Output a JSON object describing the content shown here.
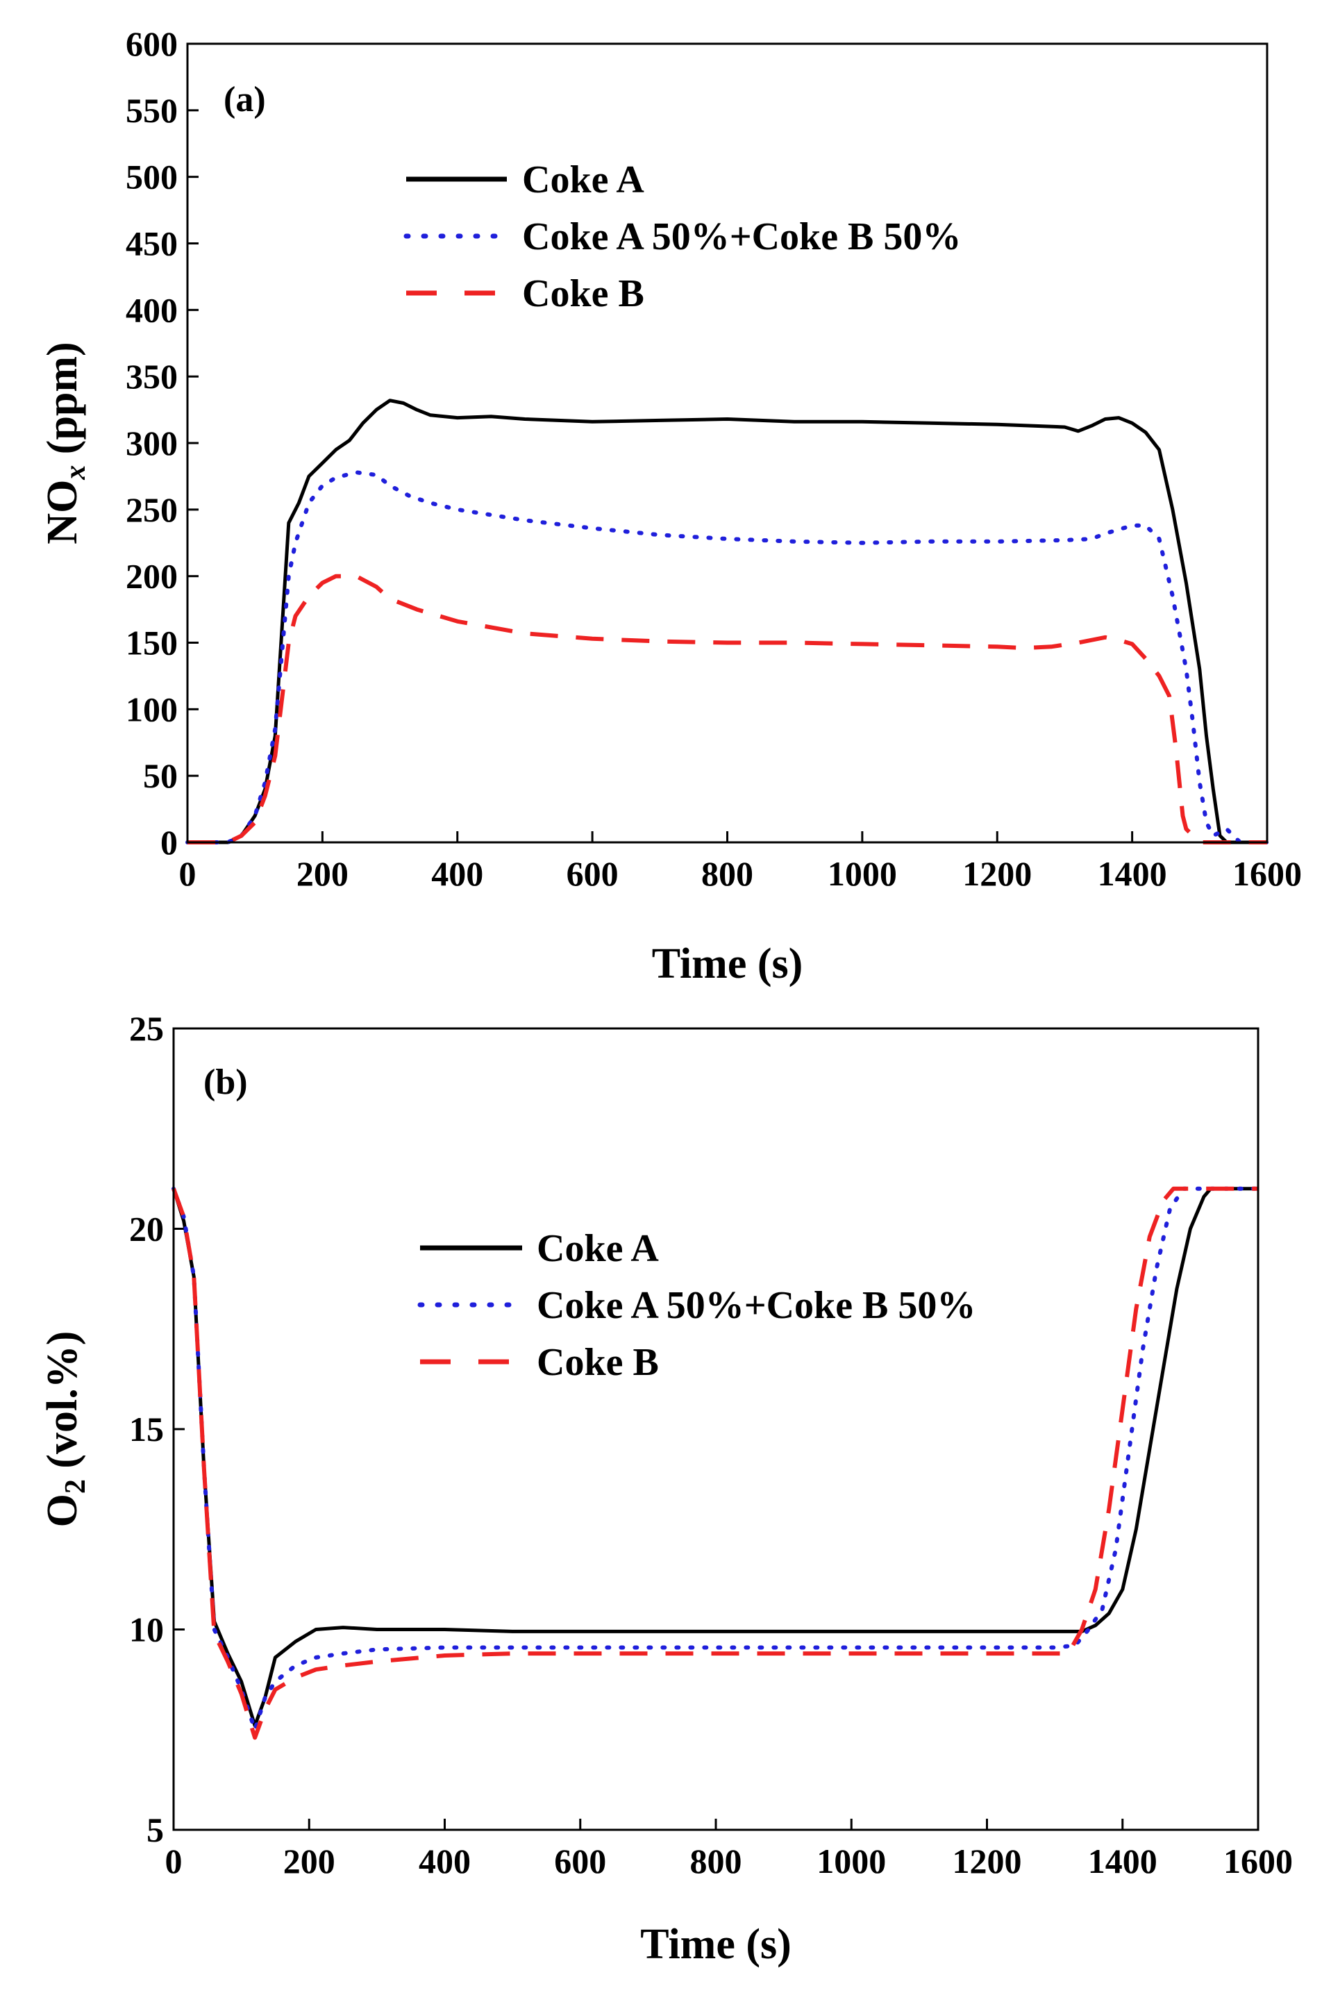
{
  "figure": {
    "panel_a_label": "(a)",
    "panel_b_label": "(b)"
  },
  "chart_data": [
    {
      "id": "a",
      "type": "line",
      "title": "",
      "panel_label": "(a)",
      "xlabel": "Time (s)",
      "ylabel_main": "NO",
      "ylabel_sub": "x",
      "ylabel_rest": " (ppm)",
      "xlim": [
        0,
        1600
      ],
      "ylim": [
        0,
        600
      ],
      "xticks": [
        0,
        200,
        400,
        600,
        800,
        1000,
        1200,
        1400,
        1600
      ],
      "yticks": [
        0,
        50,
        100,
        150,
        200,
        250,
        300,
        350,
        400,
        450,
        500,
        550,
        600
      ],
      "grid": false,
      "legend_position": "top-center",
      "series": [
        {
          "name": "Coke A",
          "color": "#000000",
          "style": "solid",
          "points": [
            [
              0,
              0
            ],
            [
              60,
              0
            ],
            [
              80,
              5
            ],
            [
              100,
              20
            ],
            [
              115,
              40
            ],
            [
              130,
              80
            ],
            [
              150,
              240
            ],
            [
              165,
              255
            ],
            [
              180,
              275
            ],
            [
              200,
              285
            ],
            [
              220,
              295
            ],
            [
              240,
              302
            ],
            [
              260,
              315
            ],
            [
              280,
              325
            ],
            [
              300,
              332
            ],
            [
              320,
              330
            ],
            [
              340,
              325
            ],
            [
              360,
              321
            ],
            [
              400,
              319
            ],
            [
              450,
              320
            ],
            [
              500,
              318
            ],
            [
              600,
              316
            ],
            [
              700,
              317
            ],
            [
              800,
              318
            ],
            [
              900,
              316
            ],
            [
              1000,
              316
            ],
            [
              1100,
              315
            ],
            [
              1200,
              314
            ],
            [
              1300,
              312
            ],
            [
              1320,
              309
            ],
            [
              1340,
              313
            ],
            [
              1360,
              318
            ],
            [
              1380,
              319
            ],
            [
              1400,
              315
            ],
            [
              1420,
              308
            ],
            [
              1440,
              295
            ],
            [
              1460,
              250
            ],
            [
              1480,
              195
            ],
            [
              1500,
              130
            ],
            [
              1510,
              80
            ],
            [
              1520,
              40
            ],
            [
              1530,
              5
            ],
            [
              1540,
              0
            ],
            [
              1600,
              0
            ]
          ]
        },
        {
          "name": "Coke A 50%+Coke B 50%",
          "color": "#1f1fdb",
          "style": "dotted",
          "points": [
            [
              0,
              0
            ],
            [
              60,
              0
            ],
            [
              80,
              5
            ],
            [
              100,
              20
            ],
            [
              115,
              45
            ],
            [
              130,
              85
            ],
            [
              150,
              200
            ],
            [
              160,
              225
            ],
            [
              180,
              255
            ],
            [
              200,
              268
            ],
            [
              220,
              274
            ],
            [
              250,
              278
            ],
            [
              280,
              276
            ],
            [
              300,
              268
            ],
            [
              330,
              260
            ],
            [
              360,
              255
            ],
            [
              400,
              250
            ],
            [
              500,
              242
            ],
            [
              600,
              236
            ],
            [
              700,
              231
            ],
            [
              800,
              228
            ],
            [
              900,
              226
            ],
            [
              1000,
              225
            ],
            [
              1100,
              226
            ],
            [
              1200,
              226
            ],
            [
              1300,
              227
            ],
            [
              1340,
              228
            ],
            [
              1360,
              232
            ],
            [
              1380,
              235
            ],
            [
              1400,
              238
            ],
            [
              1420,
              238
            ],
            [
              1440,
              228
            ],
            [
              1460,
              185
            ],
            [
              1480,
              130
            ],
            [
              1490,
              90
            ],
            [
              1500,
              45
            ],
            [
              1510,
              15
            ],
            [
              1520,
              5
            ],
            [
              1540,
              10
            ],
            [
              1560,
              0
            ],
            [
              1600,
              0
            ]
          ]
        },
        {
          "name": "Coke B",
          "color": "#ee2222",
          "style": "dashed",
          "points": [
            [
              0,
              0
            ],
            [
              60,
              0
            ],
            [
              80,
              5
            ],
            [
              100,
              15
            ],
            [
              115,
              35
            ],
            [
              130,
              65
            ],
            [
              150,
              150
            ],
            [
              160,
              170
            ],
            [
              180,
              185
            ],
            [
              200,
              195
            ],
            [
              220,
              200
            ],
            [
              250,
              200
            ],
            [
              280,
              192
            ],
            [
              300,
              183
            ],
            [
              340,
              175
            ],
            [
              400,
              166
            ],
            [
              500,
              157
            ],
            [
              600,
              153
            ],
            [
              700,
              151
            ],
            [
              800,
              150
            ],
            [
              900,
              150
            ],
            [
              1000,
              149
            ],
            [
              1100,
              148
            ],
            [
              1200,
              147
            ],
            [
              1240,
              146
            ],
            [
              1280,
              147
            ],
            [
              1320,
              150
            ],
            [
              1360,
              154
            ],
            [
              1380,
              152
            ],
            [
              1400,
              149
            ],
            [
              1420,
              138
            ],
            [
              1440,
              125
            ],
            [
              1455,
              110
            ],
            [
              1465,
              70
            ],
            [
              1475,
              20
            ],
            [
              1480,
              10
            ],
            [
              1490,
              5
            ],
            [
              1500,
              0
            ],
            [
              1600,
              0
            ]
          ]
        }
      ]
    },
    {
      "id": "b",
      "type": "line",
      "title": "",
      "panel_label": "(b)",
      "xlabel": "Time (s)",
      "ylabel_main": "O",
      "ylabel_sub": "2",
      "ylabel_rest": " (vol.%)",
      "xlim": [
        0,
        1600
      ],
      "ylim": [
        5,
        25
      ],
      "xticks": [
        0,
        200,
        400,
        600,
        800,
        1000,
        1200,
        1400,
        1600
      ],
      "yticks": [
        5,
        10,
        15,
        20,
        25
      ],
      "grid": false,
      "legend_position": "middle-left",
      "series": [
        {
          "name": "Coke A",
          "color": "#000000",
          "style": "solid",
          "points": [
            [
              0,
              21
            ],
            [
              15,
              20.2
            ],
            [
              30,
              18.8
            ],
            [
              45,
              14
            ],
            [
              60,
              10.2
            ],
            [
              80,
              9.4
            ],
            [
              100,
              8.7
            ],
            [
              120,
              7.6
            ],
            [
              135,
              8.3
            ],
            [
              150,
              9.3
            ],
            [
              180,
              9.7
            ],
            [
              210,
              10.0
            ],
            [
              250,
              10.05
            ],
            [
              300,
              10.0
            ],
            [
              400,
              10.0
            ],
            [
              500,
              9.95
            ],
            [
              600,
              9.95
            ],
            [
              700,
              9.95
            ],
            [
              800,
              9.95
            ],
            [
              900,
              9.95
            ],
            [
              1000,
              9.95
            ],
            [
              1100,
              9.95
            ],
            [
              1200,
              9.95
            ],
            [
              1300,
              9.95
            ],
            [
              1340,
              9.95
            ],
            [
              1360,
              10.1
            ],
            [
              1380,
              10.4
            ],
            [
              1400,
              11.0
            ],
            [
              1420,
              12.5
            ],
            [
              1440,
              14.5
            ],
            [
              1460,
              16.5
            ],
            [
              1480,
              18.5
            ],
            [
              1500,
              20.0
            ],
            [
              1520,
              20.8
            ],
            [
              1530,
              21.0
            ],
            [
              1600,
              21.0
            ]
          ]
        },
        {
          "name": "Coke A 50%+Coke B 50%",
          "color": "#1f1fdb",
          "style": "dotted",
          "points": [
            [
              0,
              21
            ],
            [
              15,
              20.3
            ],
            [
              30,
              18.8
            ],
            [
              45,
              14
            ],
            [
              60,
              10.0
            ],
            [
              80,
              9.3
            ],
            [
              100,
              8.5
            ],
            [
              120,
              7.5
            ],
            [
              135,
              8.3
            ],
            [
              150,
              8.7
            ],
            [
              180,
              9.1
            ],
            [
              210,
              9.3
            ],
            [
              250,
              9.4
            ],
            [
              300,
              9.5
            ],
            [
              400,
              9.55
            ],
            [
              500,
              9.55
            ],
            [
              600,
              9.55
            ],
            [
              700,
              9.55
            ],
            [
              800,
              9.55
            ],
            [
              900,
              9.55
            ],
            [
              1000,
              9.55
            ],
            [
              1100,
              9.55
            ],
            [
              1200,
              9.55
            ],
            [
              1300,
              9.55
            ],
            [
              1330,
              9.6
            ],
            [
              1350,
              10.0
            ],
            [
              1370,
              10.5
            ],
            [
              1390,
              12.0
            ],
            [
              1410,
              14.5
            ],
            [
              1430,
              17.0
            ],
            [
              1450,
              19.0
            ],
            [
              1470,
              20.5
            ],
            [
              1490,
              21.0
            ],
            [
              1600,
              21.0
            ]
          ]
        },
        {
          "name": "Coke B",
          "color": "#ee2222",
          "style": "dashed",
          "points": [
            [
              0,
              21
            ],
            [
              15,
              20.3
            ],
            [
              30,
              18.8
            ],
            [
              45,
              14
            ],
            [
              60,
              9.9
            ],
            [
              80,
              9.2
            ],
            [
              100,
              8.4
            ],
            [
              120,
              7.3
            ],
            [
              135,
              8.0
            ],
            [
              150,
              8.5
            ],
            [
              180,
              8.8
            ],
            [
              210,
              9.0
            ],
            [
              250,
              9.1
            ],
            [
              300,
              9.2
            ],
            [
              400,
              9.35
            ],
            [
              500,
              9.4
            ],
            [
              600,
              9.4
            ],
            [
              700,
              9.4
            ],
            [
              800,
              9.4
            ],
            [
              900,
              9.4
            ],
            [
              1000,
              9.4
            ],
            [
              1100,
              9.4
            ],
            [
              1200,
              9.4
            ],
            [
              1300,
              9.4
            ],
            [
              1320,
              9.4
            ],
            [
              1340,
              10.0
            ],
            [
              1360,
              11.0
            ],
            [
              1380,
              13.0
            ],
            [
              1400,
              15.5
            ],
            [
              1420,
              18.0
            ],
            [
              1440,
              19.8
            ],
            [
              1460,
              20.7
            ],
            [
              1475,
              21.0
            ],
            [
              1600,
              21.0
            ]
          ]
        }
      ]
    }
  ]
}
